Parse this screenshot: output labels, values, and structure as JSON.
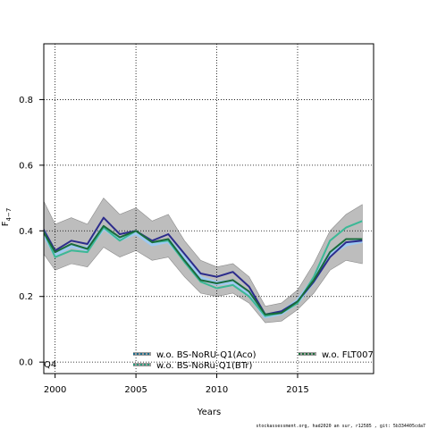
{
  "chart_data": {
    "type": "line",
    "xlabel": "Years",
    "ylabel_main": "F",
    "ylabel_sub": "4−7",
    "xlim": [
      1999.3,
      2019.7
    ],
    "ylim": [
      -0.035,
      0.97
    ],
    "x_ticks": [
      2000,
      2005,
      2010,
      2015
    ],
    "y_ticks": [
      0.0,
      0.2,
      0.4,
      0.6,
      0.8
    ],
    "grid": true,
    "corner_label": "Q4",
    "footer": "stockassessment.org, had2020 an sur, r12585 , git: 5b334405cda7",
    "x": [
      1999,
      2000,
      2001,
      2002,
      2003,
      2004,
      2005,
      2006,
      2007,
      2008,
      2009,
      2010,
      2011,
      2012,
      2013,
      2014,
      2015,
      2016,
      2017,
      2018,
      2019
    ],
    "band": {
      "upper": [
        0.52,
        0.42,
        0.44,
        0.42,
        0.5,
        0.45,
        0.47,
        0.43,
        0.45,
        0.37,
        0.31,
        0.29,
        0.3,
        0.26,
        0.17,
        0.18,
        0.22,
        0.3,
        0.4,
        0.45,
        0.48
      ],
      "lower": [
        0.35,
        0.28,
        0.3,
        0.29,
        0.35,
        0.32,
        0.34,
        0.31,
        0.32,
        0.26,
        0.21,
        0.2,
        0.21,
        0.18,
        0.12,
        0.125,
        0.16,
        0.21,
        0.28,
        0.31,
        0.3
      ],
      "color": "#bdbdbd"
    },
    "series": [
      {
        "name": "",
        "color": "#9ec9f0",
        "width": 5,
        "values": [
          0.42,
          0.33,
          0.355,
          0.345,
          0.41,
          0.375,
          0.395,
          0.36,
          0.37,
          0.315,
          0.255,
          0.24,
          0.245,
          0.21,
          0.14,
          0.15,
          0.185,
          0.25,
          0.33,
          0.36,
          0.37
        ]
      },
      {
        "name": "",
        "color": "#2c2c8c",
        "width": 2,
        "values": [
          0.43,
          0.34,
          0.37,
          0.36,
          0.44,
          0.39,
          0.4,
          0.37,
          0.39,
          0.33,
          0.27,
          0.26,
          0.275,
          0.23,
          0.145,
          0.155,
          0.185,
          0.245,
          0.32,
          0.365,
          0.37
        ]
      },
      {
        "name": "",
        "color": "#3bb896",
        "width": 2,
        "values": [
          0.43,
          0.32,
          0.34,
          0.335,
          0.41,
          0.37,
          0.4,
          0.365,
          0.37,
          0.305,
          0.245,
          0.225,
          0.235,
          0.2,
          0.14,
          0.15,
          0.18,
          0.26,
          0.37,
          0.41,
          0.43
        ]
      },
      {
        "name": "",
        "color": "#1a6b3a",
        "width": 2,
        "values": [
          0.42,
          0.335,
          0.36,
          0.345,
          0.415,
          0.38,
          0.4,
          0.365,
          0.375,
          0.31,
          0.25,
          0.24,
          0.25,
          0.215,
          0.145,
          0.15,
          0.185,
          0.25,
          0.335,
          0.375,
          0.375
        ]
      }
    ],
    "legend": [
      {
        "label": "w.o. BS-NoRU-Q1(Aco)",
        "color": "#1a6b8a",
        "style": "dotted"
      },
      {
        "label": "w.o. BS-NoRu-Q1(BTr)",
        "color": "#2a9a7a",
        "style": "dotted"
      },
      {
        "label": "w.o. FLT007",
        "color": "#1a6b3a",
        "style": "dotted"
      }
    ]
  }
}
